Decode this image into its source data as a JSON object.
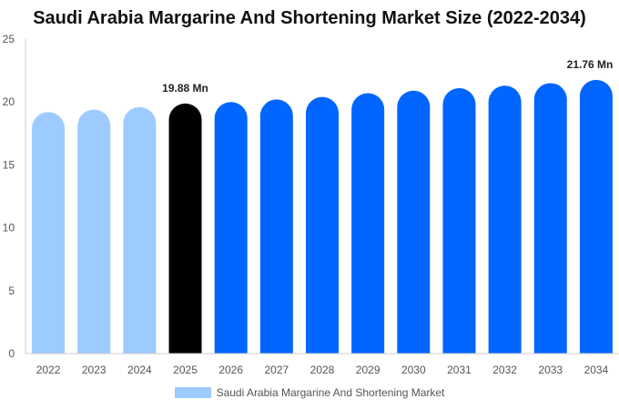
{
  "chart_data": {
    "type": "bar",
    "title": "Saudi Arabia Margarine And Shortening Market Size (2022-2034)",
    "categories": [
      "2022",
      "2023",
      "2024",
      "2025",
      "2026",
      "2027",
      "2028",
      "2029",
      "2030",
      "2031",
      "2032",
      "2033",
      "2034"
    ],
    "series": [
      {
        "name": "Saudi Arabia Margarine And Shortening Market",
        "values": [
          19.2,
          19.4,
          19.6,
          19.88,
          20.0,
          20.2,
          20.4,
          20.7,
          20.9,
          21.1,
          21.3,
          21.5,
          21.76
        ]
      }
    ],
    "data_labels": [
      {
        "category": "2025",
        "text": "19.88 Mn"
      },
      {
        "category": "2034",
        "text": "21.76 Mn"
      }
    ],
    "ylim": [
      0,
      25
    ],
    "yticks": [
      0,
      5,
      10,
      15,
      20,
      25
    ],
    "xlabel": "",
    "ylabel": "",
    "grid": false,
    "legend_position": "bottom",
    "colors": {
      "historical": "#9ecbff",
      "current": "#000000",
      "forecast": "#0066ff",
      "legend_swatch": "#9ecbff",
      "axis": "#cccccc"
    }
  }
}
